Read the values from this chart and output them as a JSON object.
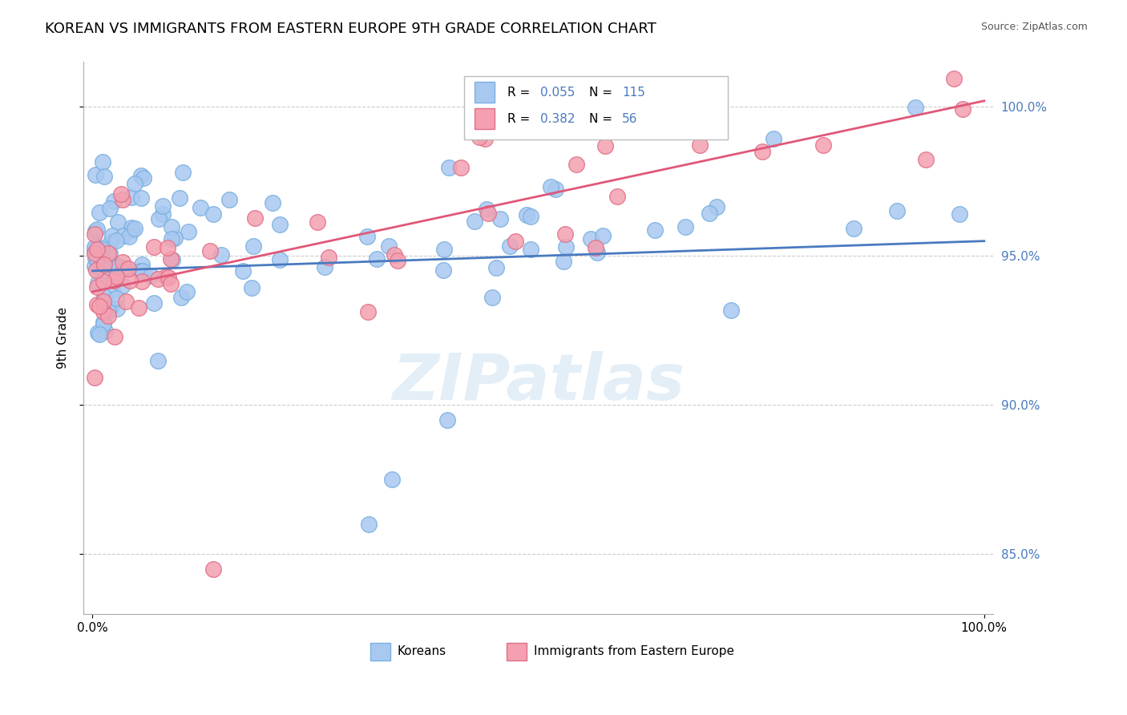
{
  "title": "KOREAN VS IMMIGRANTS FROM EASTERN EUROPE 9TH GRADE CORRELATION CHART",
  "source_text": "Source: ZipAtlas.com",
  "ylabel": "9th Grade",
  "watermark": "ZIPatlas",
  "xlim": [
    0.0,
    100.0
  ],
  "ylim": [
    83.0,
    101.5
  ],
  "yticks": [
    85.0,
    90.0,
    95.0,
    100.0
  ],
  "blue_line_color": "#4a7abf",
  "pink_line_color": "#e05878",
  "blue_face": "#a8c8f0",
  "blue_edge": "#7ab0e0",
  "pink_face": "#f4a0b0",
  "pink_edge": "#e07088",
  "blue_line_start_y": 94.5,
  "blue_line_end_y": 95.5,
  "pink_line_start_y": 93.8,
  "pink_line_end_y": 100.2,
  "watermark_color": "#c8dff0",
  "watermark_alpha": 0.5,
  "title_fontsize": 13,
  "source_fontsize": 9,
  "axis_label_fontsize": 11,
  "tick_fontsize": 11,
  "right_tick_color": "#4a7abf"
}
